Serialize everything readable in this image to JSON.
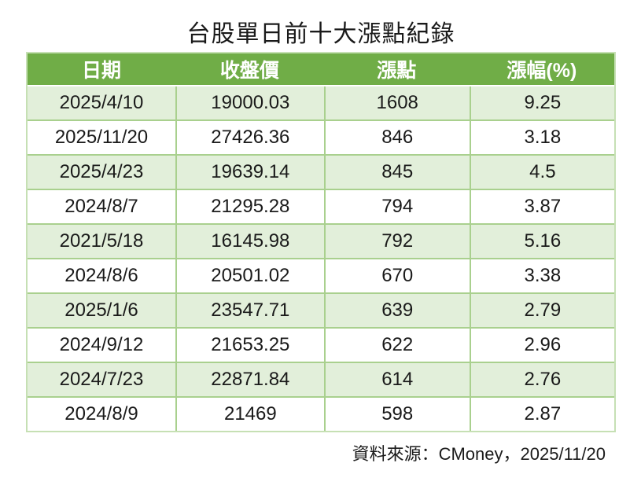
{
  "page": {
    "title": "台股單日前十大漲點紀錄",
    "source_note": "資料來源：CMoney，2025/11/20"
  },
  "colors": {
    "header_bg": "#70AD47",
    "header_text": "#FFFFFF",
    "row_banded_bg": "#E2EFDA",
    "row_plain_bg": "#FFFFFF",
    "grid_border": "#A9D08E",
    "outer_border": "#C6E0B4",
    "body_text": "#1A1A1A"
  },
  "table": {
    "columns": [
      "日期",
      "收盤價",
      "漲點",
      "漲幅(%)"
    ],
    "rows": [
      [
        "2025/4/10",
        "19000.03",
        "1608",
        "9.25"
      ],
      [
        "2025/11/20",
        "27426.36",
        "846",
        "3.18"
      ],
      [
        "2025/4/23",
        "19639.14",
        "845",
        "4.5"
      ],
      [
        "2024/8/7",
        "21295.28",
        "794",
        "3.87"
      ],
      [
        "2021/5/18",
        "16145.98",
        "792",
        "5.16"
      ],
      [
        "2024/8/6",
        "20501.02",
        "670",
        "3.38"
      ],
      [
        "2025/1/6",
        "23547.71",
        "639",
        "2.79"
      ],
      [
        "2024/9/12",
        "21653.25",
        "622",
        "2.96"
      ],
      [
        "2024/7/23",
        "22871.84",
        "614",
        "2.76"
      ],
      [
        "2024/8/9",
        "21469",
        "598",
        "2.87"
      ]
    ]
  },
  "chart_data": {
    "type": "table",
    "title": "台股單日前十大漲點紀錄",
    "columns": [
      "日期",
      "收盤價",
      "漲點",
      "漲幅(%)"
    ],
    "rows": [
      {
        "date": "2025/4/10",
        "close": 19000.03,
        "points_gained": 1608,
        "pct_change": 9.25
      },
      {
        "date": "2025/11/20",
        "close": 27426.36,
        "points_gained": 846,
        "pct_change": 3.18
      },
      {
        "date": "2025/4/23",
        "close": 19639.14,
        "points_gained": 845,
        "pct_change": 4.5
      },
      {
        "date": "2024/8/7",
        "close": 21295.28,
        "points_gained": 794,
        "pct_change": 3.87
      },
      {
        "date": "2021/5/18",
        "close": 16145.98,
        "points_gained": 792,
        "pct_change": 5.16
      },
      {
        "date": "2024/8/6",
        "close": 20501.02,
        "points_gained": 670,
        "pct_change": 3.38
      },
      {
        "date": "2025/1/6",
        "close": 23547.71,
        "points_gained": 639,
        "pct_change": 2.79
      },
      {
        "date": "2024/9/12",
        "close": 21653.25,
        "points_gained": 622,
        "pct_change": 2.96
      },
      {
        "date": "2024/7/23",
        "close": 22871.84,
        "points_gained": 614,
        "pct_change": 2.76
      },
      {
        "date": "2024/8/9",
        "close": 21469,
        "points_gained": 598,
        "pct_change": 2.87
      }
    ],
    "source": "資料來源：CMoney，2025/11/20"
  }
}
